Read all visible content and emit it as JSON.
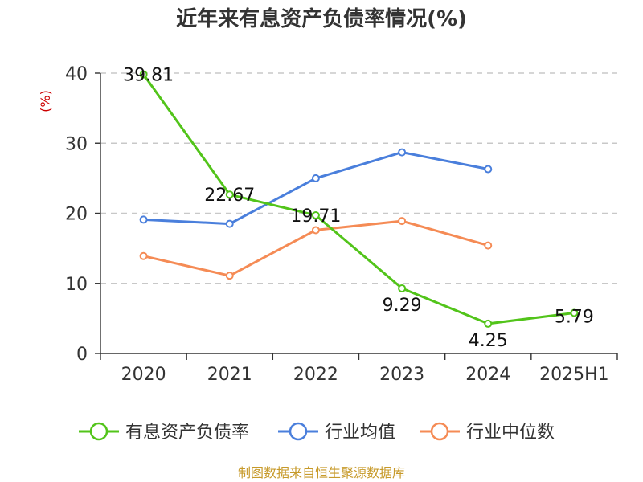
{
  "chart_data": {
    "type": "line",
    "title": "近年来有息资产负债率情况(%)",
    "ylabel": "(%)",
    "xlabel": "",
    "categories": [
      "2020",
      "2021",
      "2022",
      "2023",
      "2024",
      "2025H1"
    ],
    "ylim": [
      0,
      40
    ],
    "yticks": [
      0,
      10,
      20,
      30,
      40
    ],
    "grid": true,
    "legend_position": "bottom",
    "series": [
      {
        "name": "有息资产负债率",
        "color": "#52c41a",
        "values": [
          39.81,
          22.67,
          19.71,
          9.29,
          4.25,
          5.79
        ],
        "labels": [
          "39.81",
          "22.67",
          "19.71",
          "9.29",
          "4.25",
          "5.79"
        ]
      },
      {
        "name": "行业均值",
        "color": "#4a7fdc",
        "values": [
          19.1,
          18.5,
          25.0,
          28.7,
          26.3,
          null
        ]
      },
      {
        "name": "行业中位数",
        "color": "#f58b55",
        "values": [
          13.9,
          11.1,
          17.6,
          18.9,
          15.4,
          null
        ]
      }
    ],
    "source": "制图数据来自恒生聚源数据库"
  }
}
